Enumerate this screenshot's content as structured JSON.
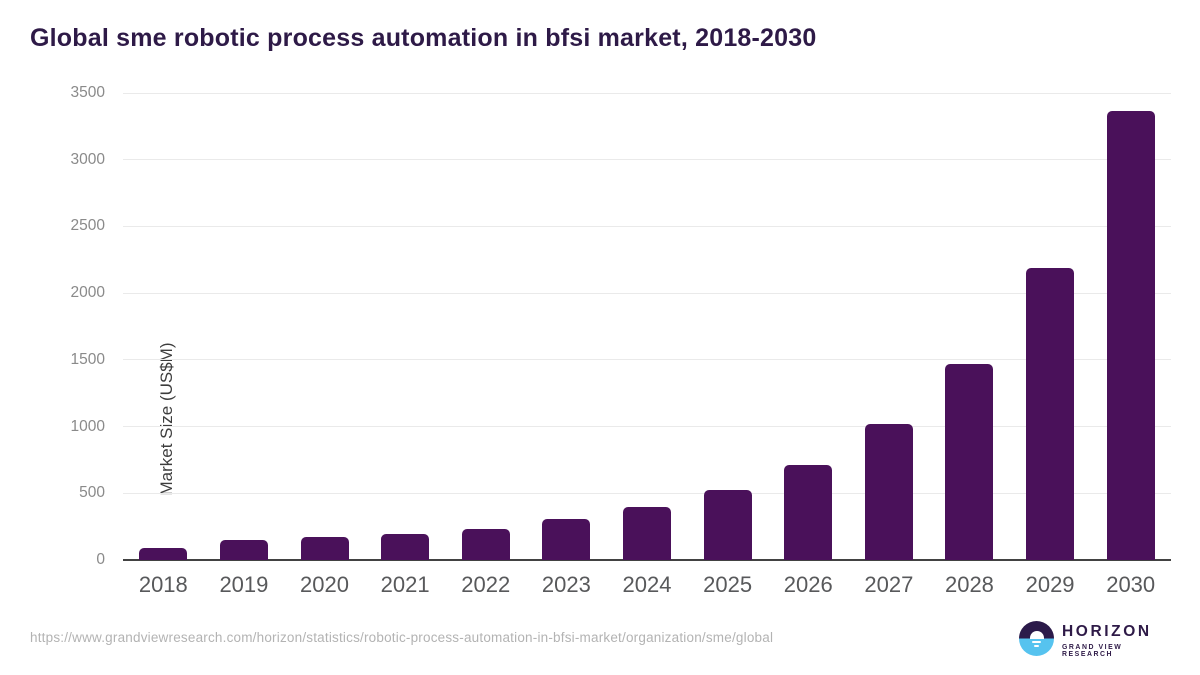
{
  "title": "Global sme robotic process automation in bfsi market, 2018-2030",
  "source_url": "https://www.grandviewresearch.com/horizon/statistics/robotic-process-automation-in-bfsi-market/organization/sme/global",
  "logo": {
    "name": "HORIZON",
    "subtitle": "GRAND VIEW RESEARCH"
  },
  "theme": {
    "bar_color": "#4a115a",
    "title_color": "#2e1a47",
    "grid_color": "#eaeaea",
    "axis_line_color": "#424242",
    "tick_label_color": "#8a8a8a",
    "x_label_color": "#58595b",
    "ylabel_color": "#3d3d3d",
    "url_color": "#b3b3b3",
    "logo_top_color": "#2b1a4a",
    "logo_bottom_color": "#56c3ef"
  },
  "chart_data": {
    "type": "bar",
    "title": "Global sme robotic process automation in bfsi market, 2018-2030",
    "xlabel": "",
    "ylabel": "Market Size (US$M)",
    "categories": [
      "2018",
      "2019",
      "2020",
      "2021",
      "2022",
      "2023",
      "2024",
      "2025",
      "2026",
      "2027",
      "2028",
      "2029",
      "2030"
    ],
    "values": [
      90,
      148,
      170,
      197,
      235,
      308,
      400,
      523,
      712,
      1020,
      1470,
      2190,
      3365
    ],
    "ylim": [
      0,
      3500
    ],
    "ytick_step": 500,
    "yticks": [
      0,
      500,
      1000,
      1500,
      2000,
      2500,
      3000,
      3500
    ],
    "grid": true,
    "legend": false
  }
}
